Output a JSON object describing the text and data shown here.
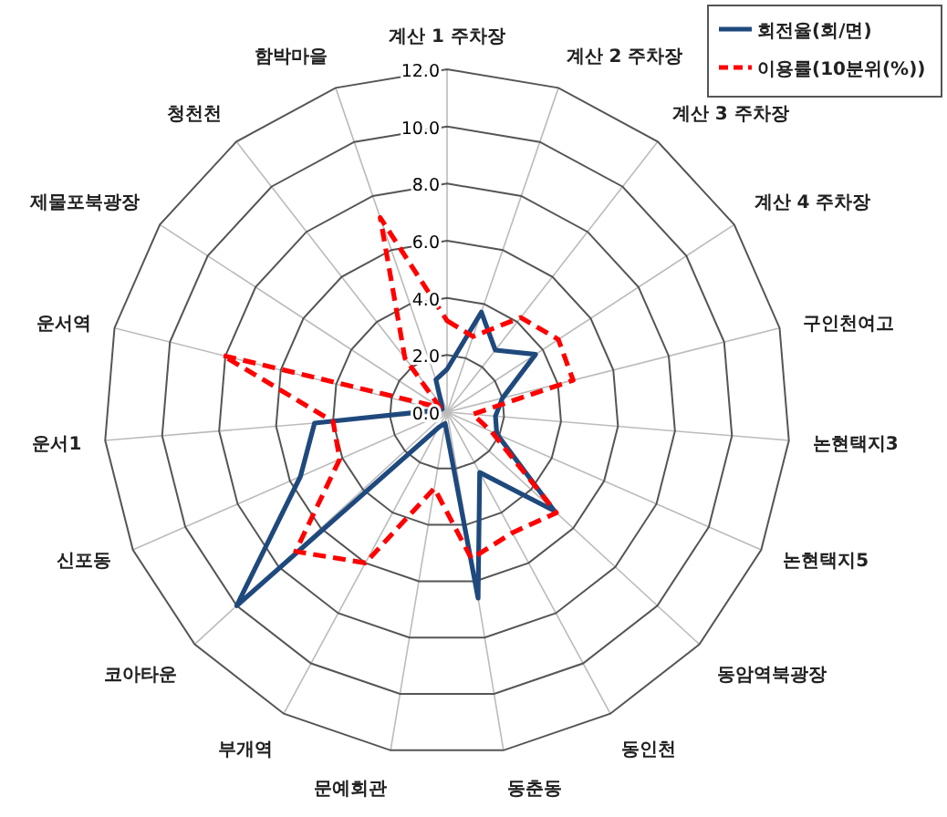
{
  "chart_data": {
    "type": "radar",
    "categories": [
      "계산 1 주차장",
      "계산 2 주차장",
      "계산 3 주차장",
      "계산 4 주차장",
      "구인천여고",
      "논현택지3",
      "논현택지5",
      "동암역북광장",
      "동인천",
      "동춘동",
      "문예회관",
      "부개역",
      "코아타운",
      "신포동",
      "운서1",
      "운서역",
      "제물포북광장",
      "청천천",
      "함박마을"
    ],
    "series": [
      {
        "name": "회전율(회/면)",
        "color": "#1f497d",
        "line_style": "solid",
        "values": [
          1.5,
          3.7,
          2.75,
          3.7,
          2.0,
          1.7,
          1.9,
          5.1,
          2.4,
          6.6,
          0.4,
          0.6,
          10.0,
          5.6,
          4.65,
          0.3,
          0.2,
          0.3,
          1.2
        ]
      },
      {
        "name": "이용률(10분위(%))",
        "color": "#ff0000",
        "line_style": "dashed",
        "values": [
          3.2,
          2.8,
          4.2,
          4.65,
          4.55,
          0.9,
          1.7,
          5.2,
          4.8,
          5.2,
          2.7,
          6.0,
          7.2,
          4.1,
          4.0,
          8.1,
          0.3,
          2.4,
          7.2
        ]
      }
    ],
    "ylim": [
      0,
      12
    ],
    "yticks": [
      {
        "value": 0,
        "label": "0.0"
      },
      {
        "value": 2,
        "label": "2.0"
      },
      {
        "value": 4,
        "label": "4.0"
      },
      {
        "value": 6,
        "label": "6.0"
      },
      {
        "value": 8,
        "label": "8.0"
      },
      {
        "value": 10,
        "label": "10.0"
      },
      {
        "value": 12,
        "label": "12.0"
      }
    ],
    "grid": true,
    "legend": "top right"
  }
}
